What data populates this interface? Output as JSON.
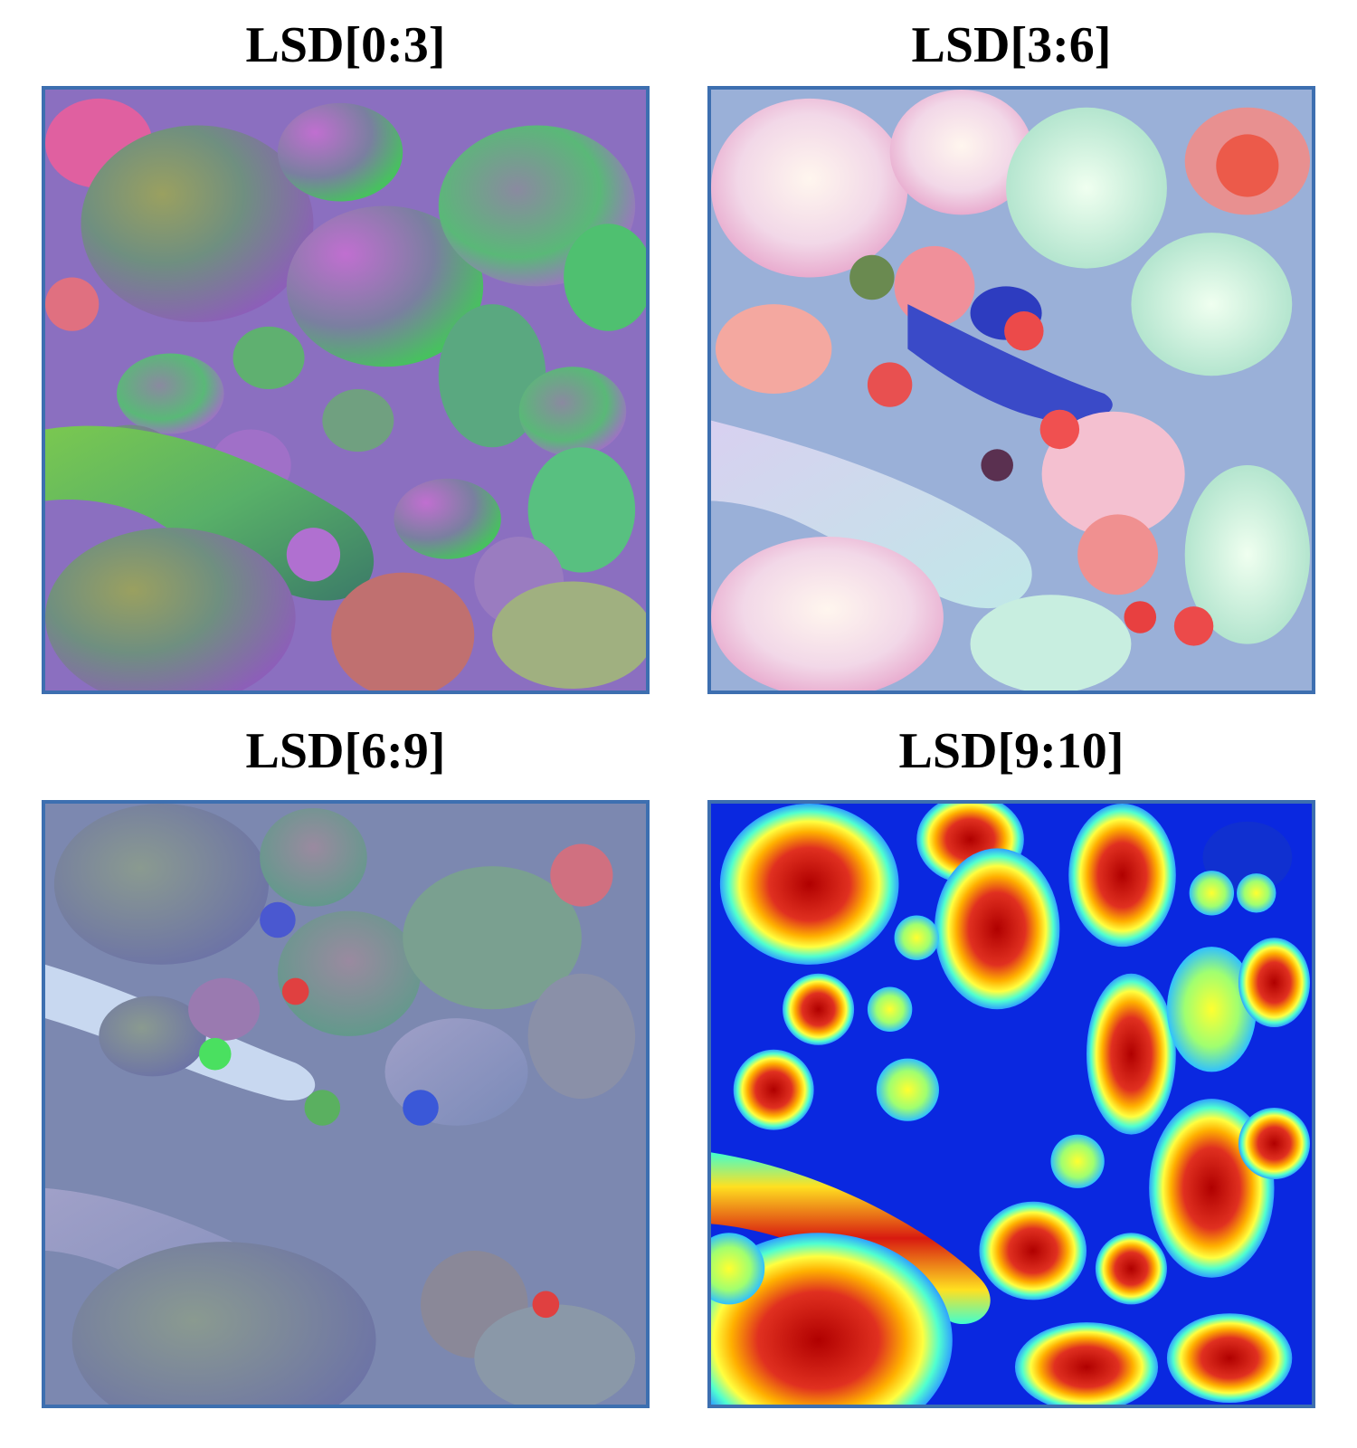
{
  "panels": [
    {
      "title": "LSD[0:3]"
    },
    {
      "title": "LSD[3:6]"
    },
    {
      "title": "LSD[6:9]"
    },
    {
      "title": "LSD[9:10]"
    }
  ],
  "frame_color": "#3d6fb0"
}
